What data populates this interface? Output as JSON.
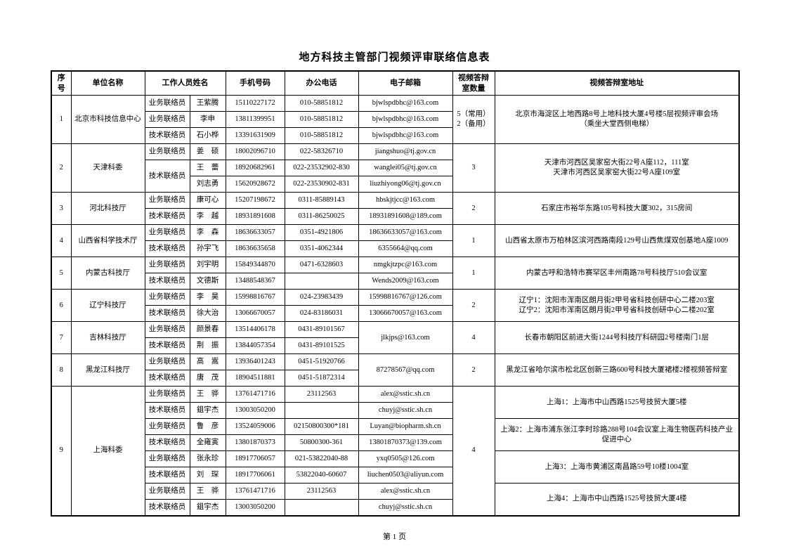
{
  "page": {
    "title": "地方科技主管部门视频评审联络信息表",
    "footer": "第 1 页"
  },
  "colors": {
    "background": "#ffffff",
    "text": "#000000",
    "border": "#000000"
  },
  "table": {
    "headers": [
      {
        "label": "序号",
        "colspan": 1
      },
      {
        "label": "单位名称",
        "colspan": 1
      },
      {
        "label": "工作人员姓名",
        "colspan": 2
      },
      {
        "label": "手机号码",
        "colspan": 1
      },
      {
        "label": "办公电话",
        "colspan": 1
      },
      {
        "label": "电子邮箱",
        "colspan": 1
      },
      {
        "label": "视频答辩室数量",
        "colspan": 1
      },
      {
        "label": "视频答辩室地址",
        "colspan": 1
      }
    ],
    "groups": [
      {
        "index": "1",
        "unit": "北京市科技信息中心",
        "room_count": "5（常用）\n2（备用）",
        "staff": [
          {
            "role": "业务联络员",
            "role_span": 1,
            "name": "王紫腾",
            "mobile": "15110227172",
            "office": "010-58851812",
            "email": "bjwlspdbhc@163.com",
            "email_span": 1
          },
          {
            "role": "业务联络员",
            "role_span": 1,
            "name": "李申",
            "mobile": "13811399951",
            "office": "010-58851812",
            "email": "bjwlspdbhc@163.com",
            "email_span": 1
          },
          {
            "role": "技术联络员",
            "role_span": 1,
            "name": "石小桦",
            "mobile": "13391631909",
            "office": "010-58851812",
            "email": "bjwlspdbhc@163.com",
            "email_span": 1
          }
        ],
        "addresses": [
          {
            "text": "北京市海淀区上地西路8号上地科技大厦4号楼5层视频评审会场\n（乘坐大堂西侧电梯）",
            "span": 3
          }
        ]
      },
      {
        "index": "2",
        "unit": "天津科委",
        "room_count": "3",
        "staff": [
          {
            "role": "业务联络员",
            "role_span": 1,
            "name": "姜　硕",
            "mobile": "18002096710",
            "office": "022-58326710",
            "email": "jiangshuo@tj.gov.cn",
            "email_span": 1
          },
          {
            "role": "技术联络员",
            "role_span": 2,
            "name": "王　蕾",
            "mobile": "18920682961",
            "office": "022-23532902-830",
            "email": "wanglei05@tj.gov.cn",
            "email_span": 1
          },
          {
            "role": null,
            "name": "刘志勇",
            "mobile": "15620928672",
            "office": "022-23530902-831",
            "email": "liuzhiyong06@tj.gov.cn",
            "email_span": 1
          }
        ],
        "addresses": [
          {
            "text": "天津市河西区吴家窑大街22号A座112，111室\n天津市河西区吴家窑大街22号A座109室",
            "span": 3
          }
        ]
      },
      {
        "index": "3",
        "unit": "河北科技厅",
        "room_count": "2",
        "staff": [
          {
            "role": "业务联络员",
            "role_span": 1,
            "name": "康可心",
            "mobile": "15207198672",
            "office": "0311-85889143",
            "email": "hbskjtjcc@163.com",
            "email_span": 1
          },
          {
            "role": "技术联络员",
            "role_span": 1,
            "name": "李　越",
            "mobile": "18931891608",
            "office": "0311-86250025",
            "email": "18931891608@189.com",
            "email_span": 1
          }
        ],
        "addresses": [
          {
            "text": "石家庄市裕华东路105号科技大厦302，315房间",
            "span": 2
          }
        ]
      },
      {
        "index": "4",
        "unit": "山西省科学技术厅",
        "room_count": "1",
        "staff": [
          {
            "role": "业务联络员",
            "role_span": 1,
            "name": "李　森",
            "mobile": "18636633057",
            "office": "0351-4921806",
            "email": "18636633057@163.com",
            "email_span": 1
          },
          {
            "role": "技术联络员",
            "role_span": 1,
            "name": "孙宇飞",
            "mobile": "18636635658",
            "office": "0351-4062344",
            "email": "6355664@qq.com",
            "email_span": 1
          }
        ],
        "addresses": [
          {
            "text": "山西省太原市万柏林区滨河西路南段129号山西焦煤双创基地A座1009",
            "span": 2
          }
        ]
      },
      {
        "index": "5",
        "unit": "内蒙古科技厅",
        "room_count": "1",
        "staff": [
          {
            "role": "业务联络员",
            "role_span": 1,
            "name": "刘宇明",
            "mobile": "15849344870",
            "office": "0471-6328603",
            "email": "nmgkjtzpc@163.com",
            "email_span": 1
          },
          {
            "role": "技术联络员",
            "role_span": 1,
            "name": "文德斯",
            "mobile": "13488548367",
            "office": "",
            "email": "Wends2009@163.com",
            "email_span": 1
          }
        ],
        "addresses": [
          {
            "text": "内蒙古呼和浩特市赛罕区丰州南路78号科技厅510会议室",
            "span": 2
          }
        ]
      },
      {
        "index": "6",
        "unit": "辽宁科技厅",
        "room_count": "2",
        "staff": [
          {
            "role": "业务联络员",
            "role_span": 1,
            "name": "李　昊",
            "mobile": "15998816767",
            "office": "024-23983439",
            "email": "15998816767@126.com",
            "email_span": 1
          },
          {
            "role": "技术联络员",
            "role_span": 1,
            "name": "徐大治",
            "mobile": "13066670057",
            "office": "024-83186031",
            "email": "13066670057@163.com",
            "email_span": 1
          }
        ],
        "addresses": [
          {
            "text": "辽宁1：沈阳市浑南区朗月街2甲号省科技创研中心二楼203室\n辽宁2：沈阳市浑南区朗月街2甲号省科技创研中心二楼202室",
            "span": 2
          }
        ]
      },
      {
        "index": "7",
        "unit": "吉林科技厅",
        "room_count": "4",
        "staff": [
          {
            "role": "业务联络员",
            "role_span": 1,
            "name": "颜景春",
            "mobile": "13514406178",
            "office": "0431-89101567",
            "email": "jlkjps@163.com",
            "email_span": 2
          },
          {
            "role": "技术联络员",
            "role_span": 1,
            "name": "荆　振",
            "mobile": "13844057354",
            "office": "0431-89101525",
            "email": null
          }
        ],
        "addresses": [
          {
            "text": "长春市朝阳区前进大街1244号科技厅科研园2号楼南门1层",
            "span": 2
          }
        ]
      },
      {
        "index": "8",
        "unit": "黑龙江科技厅",
        "room_count": "2",
        "staff": [
          {
            "role": "业务联络员",
            "role_span": 1,
            "name": "高　嵩",
            "mobile": "13936401243",
            "office": "0451-51920766",
            "email": "87278567@qq.com",
            "email_span": 2
          },
          {
            "role": "技术联络员",
            "role_span": 1,
            "name": "唐　茂",
            "mobile": "18904511881",
            "office": "0451-51872314",
            "email": null
          }
        ],
        "addresses": [
          {
            "text": "黑龙江省哈尔滨市松北区创新三路600号科技大厦裙楼2楼视频答辩室",
            "span": 2
          }
        ]
      },
      {
        "index": "9",
        "unit": "上海科委",
        "room_count": "4",
        "staff": [
          {
            "role": "业务联络员",
            "role_span": 1,
            "name": "王　骅",
            "mobile": "13761471716",
            "office": "23112563",
            "email": "alex@sstic.sh.cn",
            "email_span": 1
          },
          {
            "role": "技术联络员",
            "role_span": 1,
            "name": "鉏宇杰",
            "mobile": "13003050200",
            "office": "",
            "email": "chuyj@sstic.sh.cn",
            "email_span": 1
          },
          {
            "role": "业务联络员",
            "role_span": 1,
            "name": "鲁　彦",
            "mobile": "13524059006",
            "office": "02150800300*181",
            "email": "Luyan@biopharm.sh.cn",
            "email_span": 1
          },
          {
            "role": "技术联络员",
            "role_span": 1,
            "name": "全雍寅",
            "mobile": "13801870373",
            "office": "50800300-361",
            "email": "13801870373@139.com",
            "email_span": 1
          },
          {
            "role": "业务联络员",
            "role_span": 1,
            "name": "张永珍",
            "mobile": "18917706057",
            "office": "021-53822040-88",
            "email": "yxq0505@126.com",
            "email_span": 1
          },
          {
            "role": "技术联络员",
            "role_span": 1,
            "name": "刘　琛",
            "mobile": "18917706061",
            "office": "53822040-60607",
            "email": "liuchen0503@aliyun.com",
            "email_span": 1
          },
          {
            "role": "业务联络员",
            "role_span": 1,
            "name": "王　骅",
            "mobile": "13761471716",
            "office": "23112563",
            "email": "alex@sstic.sh.cn",
            "email_span": 1
          },
          {
            "role": "技术联络员",
            "role_span": 1,
            "name": "鉏宇杰",
            "mobile": "13003050200",
            "office": "",
            "email": "chuyj@sstic.sh.cn",
            "email_span": 1
          }
        ],
        "addresses": [
          {
            "text": "上海1：上海市中山西路1525号技贸大厦5楼",
            "span": 2
          },
          {
            "text": "上海2：上海市浦东张江李时珍路288号104会议室上海生物医药科技产业促进中心",
            "span": 2
          },
          {
            "text": "上海3：上海市黄浦区南昌路59号10楼1004室",
            "span": 2
          },
          {
            "text": "上海4：上海市中山西路1525号技贸大厦4楼",
            "span": 2
          }
        ]
      }
    ]
  }
}
